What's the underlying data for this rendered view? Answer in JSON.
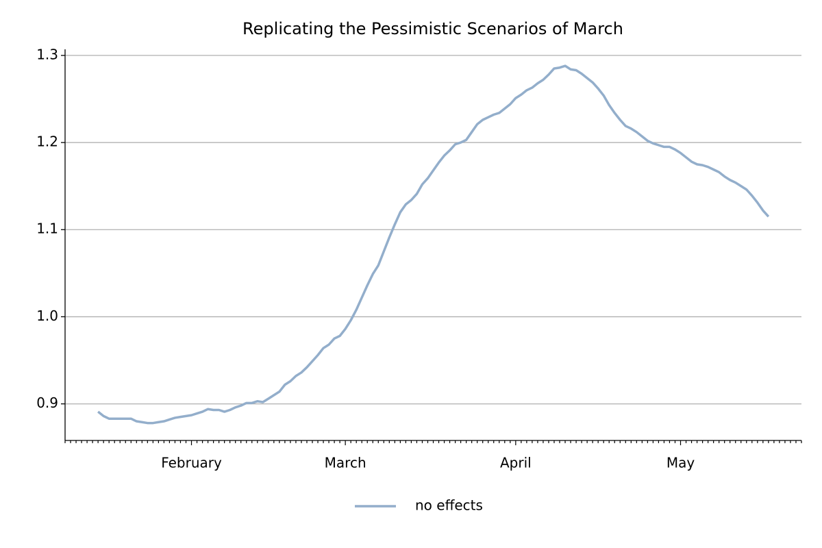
{
  "chart_data": {
    "type": "line",
    "title": "Replicating the Pessimistic Scenarios of March",
    "categories": [
      null,
      null,
      null,
      null,
      null,
      null,
      null,
      null,
      null,
      null,
      null,
      null,
      null,
      null,
      null,
      null,
      null,
      null,
      null,
      null,
      null,
      null,
      null,
      "February",
      null,
      null,
      null,
      null,
      null,
      null,
      null,
      null,
      null,
      null,
      null,
      null,
      null,
      null,
      null,
      null,
      null,
      null,
      null,
      null,
      null,
      null,
      null,
      null,
      null,
      null,
      null,
      "March",
      null,
      null,
      null,
      null,
      null,
      null,
      null,
      null,
      null,
      null,
      null,
      null,
      null,
      null,
      null,
      null,
      null,
      null,
      null,
      null,
      null,
      null,
      null,
      null,
      null,
      null,
      null,
      null,
      null,
      null,
      "April",
      null,
      null,
      null,
      null,
      null,
      null,
      null,
      null,
      null,
      null,
      null,
      null,
      null,
      null,
      null,
      null,
      null,
      null,
      null,
      null,
      null,
      null,
      null,
      null,
      null,
      null,
      null,
      null,
      null,
      "May",
      null,
      null,
      null,
      null,
      null,
      null,
      null,
      null,
      null,
      null,
      null,
      null,
      null,
      null,
      null,
      null,
      null,
      null,
      null,
      null,
      null,
      null
    ],
    "series": [
      {
        "name": "no effects",
        "color": "#93aecb",
        "values": [
          null,
          null,
          null,
          null,
          null,
          null,
          0.891,
          0.886,
          0.883,
          0.883,
          0.883,
          0.883,
          0.883,
          0.88,
          0.879,
          0.878,
          0.878,
          0.879,
          0.88,
          0.882,
          0.884,
          0.885,
          0.886,
          0.887,
          0.889,
          0.891,
          0.894,
          0.893,
          0.893,
          0.891,
          0.893,
          0.896,
          0.898,
          0.901,
          0.901,
          0.903,
          0.902,
          0.906,
          0.91,
          0.914,
          0.922,
          0.926,
          0.932,
          0.936,
          0.942,
          0.949,
          0.956,
          0.964,
          0.968,
          0.975,
          0.978,
          0.986,
          0.996,
          1.008,
          1.022,
          1.036,
          1.049,
          1.059,
          1.075,
          1.091,
          1.106,
          1.12,
          1.129,
          1.134,
          1.141,
          1.152,
          1.159,
          1.168,
          1.177,
          1.185,
          1.191,
          1.198,
          1.2,
          1.203,
          1.212,
          1.221,
          1.226,
          1.229,
          1.232,
          1.234,
          1.239,
          1.244,
          1.251,
          1.255,
          1.26,
          1.263,
          1.268,
          1.272,
          1.278,
          1.285,
          1.286,
          1.288,
          1.284,
          1.283,
          1.279,
          1.274,
          1.269,
          1.262,
          1.254,
          1.243,
          1.234,
          1.226,
          1.219,
          1.216,
          1.212,
          1.207,
          1.202,
          1.199,
          1.197,
          1.195,
          1.195,
          1.192,
          1.188,
          1.183,
          1.178,
          1.175,
          1.174,
          1.172,
          1.169,
          1.166,
          1.161,
          1.157,
          1.154,
          1.15,
          1.146,
          1.139,
          1.131,
          1.122,
          1.115,
          null,
          null,
          null,
          null,
          null,
          null
        ]
      }
    ],
    "ylim": [
      0.858,
      1.307
    ],
    "yticks": [
      {
        "value": 0.9,
        "label": "0.9"
      },
      {
        "value": 1.0,
        "label": "1.0"
      },
      {
        "value": 1.1,
        "label": "1.1"
      },
      {
        "value": 1.2,
        "label": "1.2"
      },
      {
        "value": 1.3,
        "label": "1.3"
      }
    ],
    "grid": true,
    "legend": "bottom"
  }
}
